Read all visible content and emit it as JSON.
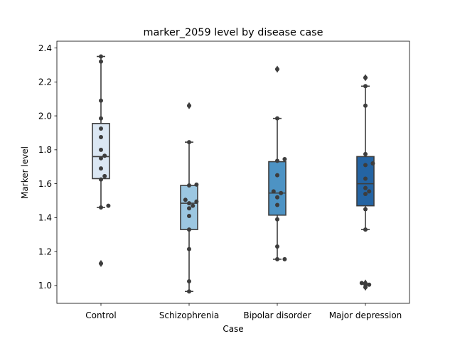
{
  "chart_data": {
    "type": "box",
    "title": "marker_2059 level by disease case",
    "xlabel": "Case",
    "ylabel": "Marker level",
    "ylim": [
      0.895,
      2.44
    ],
    "yticks": [
      1.0,
      1.2,
      1.4,
      1.6,
      1.8,
      2.0,
      2.2,
      2.4
    ],
    "ytick_labels": [
      "1.0",
      "1.2",
      "1.4",
      "1.6",
      "1.8",
      "2.0",
      "2.2",
      "2.4"
    ],
    "grid": false,
    "legend": "none",
    "categories": [
      "Control",
      "Schizophrenia",
      "Bipolar disorder",
      "Major depression"
    ],
    "boxes": [
      {
        "q1": 1.63,
        "median": 1.76,
        "q3": 1.955,
        "whisker_low": 1.46,
        "whisker_high": 2.35,
        "outliers": [
          1.13
        ],
        "color": "#dbe7f3"
      },
      {
        "q1": 1.33,
        "median": 1.485,
        "q3": 1.59,
        "whisker_low": 0.965,
        "whisker_high": 1.845,
        "outliers": [
          2.06
        ],
        "color": "#9cc7e1"
      },
      {
        "q1": 1.415,
        "median": 1.545,
        "q3": 1.73,
        "whisker_low": 1.155,
        "whisker_high": 1.985,
        "outliers": [
          2.275
        ],
        "color": "#4d93c4"
      },
      {
        "q1": 1.47,
        "median": 1.6,
        "q3": 1.76,
        "whisker_low": 1.33,
        "whisker_high": 2.175,
        "outliers": [
          2.225,
          1.015,
          1.005,
          0.99
        ],
        "color": "#2464a3"
      }
    ],
    "points": [
      [
        2.35,
        2.32,
        2.09,
        1.985,
        1.925,
        1.875,
        1.8,
        1.765,
        1.75,
        1.69,
        1.645,
        1.625,
        1.47,
        1.46,
        1.13
      ],
      [
        2.06,
        1.845,
        1.595,
        1.59,
        1.505,
        1.495,
        1.485,
        1.47,
        1.455,
        1.41,
        1.33,
        1.215,
        1.025,
        0.965
      ],
      [
        2.275,
        1.985,
        1.745,
        1.735,
        1.65,
        1.555,
        1.545,
        1.52,
        1.475,
        1.39,
        1.23,
        1.155,
        1.155
      ],
      [
        2.225,
        2.175,
        2.06,
        1.775,
        1.72,
        1.71,
        1.63,
        1.575,
        1.555,
        1.54,
        1.45,
        1.33,
        1.015,
        1.005,
        0.99
      ]
    ]
  }
}
